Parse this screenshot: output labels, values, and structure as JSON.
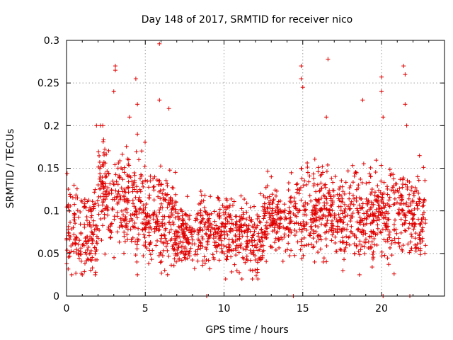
{
  "chart_data": {
    "type": "scatter",
    "title": "Day 148 of 2017, SRMTID for receiver nico",
    "xlabel": "GPS time / hours",
    "ylabel": "SRMTID / TECUs",
    "xlim": [
      0,
      24
    ],
    "ylim": [
      0,
      0.3
    ],
    "xticks": [
      "0",
      "5",
      "10",
      "15",
      "20"
    ],
    "xtick_values": [
      0,
      5,
      10,
      15,
      20
    ],
    "yticks": [
      "0",
      "0.05",
      "0.1",
      "0.15",
      "0.2",
      "0.25",
      "0.3"
    ],
    "ytick_values": [
      0,
      0.05,
      0.1,
      0.15,
      0.2,
      0.25,
      0.3
    ],
    "grid": true,
    "marker": "+",
    "color": "#e00000",
    "notable_points": [
      [
        3.1,
        0.27
      ],
      [
        3.1,
        0.265
      ],
      [
        3.0,
        0.24
      ],
      [
        4.4,
        0.255
      ],
      [
        4.5,
        0.225
      ],
      [
        5.9,
        0.296
      ],
      [
        5.9,
        0.23
      ],
      [
        6.5,
        0.22
      ],
      [
        14.9,
        0.27
      ],
      [
        14.9,
        0.255
      ],
      [
        15.0,
        0.245
      ],
      [
        16.6,
        0.278
      ],
      [
        16.5,
        0.21
      ],
      [
        18.8,
        0.23
      ],
      [
        20.0,
        0.257
      ],
      [
        20.0,
        0.24
      ],
      [
        20.1,
        0.21
      ],
      [
        21.4,
        0.27
      ],
      [
        21.5,
        0.26
      ],
      [
        21.5,
        0.225
      ],
      [
        21.6,
        0.2
      ],
      [
        1.9,
        0.2
      ],
      [
        2.3,
        0.2
      ],
      [
        4.0,
        0.21
      ],
      [
        4.5,
        0.19
      ],
      [
        11.8,
        0.02
      ],
      [
        1.0,
        0.025
      ],
      [
        4.5,
        0.025
      ],
      [
        18.6,
        0.025
      ],
      [
        20.8,
        0.026
      ],
      [
        8.9,
        0.0
      ],
      [
        14.4,
        0.0
      ],
      [
        20.1,
        0.0
      ],
      [
        21.8,
        0.0
      ]
    ],
    "segments": [
      {
        "x0": 0.0,
        "x1": 2.0,
        "lo": 0.025,
        "hi": 0.18,
        "mean": 0.075,
        "n": 170
      },
      {
        "x0": 2.0,
        "x1": 2.6,
        "lo": 0.04,
        "hi": 0.2,
        "mean": 0.13,
        "n": 70
      },
      {
        "x0": 2.6,
        "x1": 5.0,
        "lo": 0.04,
        "hi": 0.22,
        "mean": 0.11,
        "n": 210
      },
      {
        "x0": 5.0,
        "x1": 7.0,
        "lo": 0.025,
        "hi": 0.2,
        "mean": 0.085,
        "n": 200
      },
      {
        "x0": 7.0,
        "x1": 10.0,
        "lo": 0.03,
        "hi": 0.15,
        "mean": 0.075,
        "n": 260
      },
      {
        "x0": 10.0,
        "x1": 12.5,
        "lo": 0.02,
        "hi": 0.15,
        "mean": 0.07,
        "n": 220
      },
      {
        "x0": 12.5,
        "x1": 14.3,
        "lo": 0.04,
        "hi": 0.17,
        "mean": 0.09,
        "n": 160
      },
      {
        "x0": 14.4,
        "x1": 17.5,
        "lo": 0.04,
        "hi": 0.2,
        "mean": 0.1,
        "n": 280
      },
      {
        "x0": 17.5,
        "x1": 20.0,
        "lo": 0.03,
        "hi": 0.19,
        "mean": 0.095,
        "n": 230
      },
      {
        "x0": 20.0,
        "x1": 22.8,
        "lo": 0.03,
        "hi": 0.19,
        "mean": 0.095,
        "n": 240
      }
    ]
  }
}
